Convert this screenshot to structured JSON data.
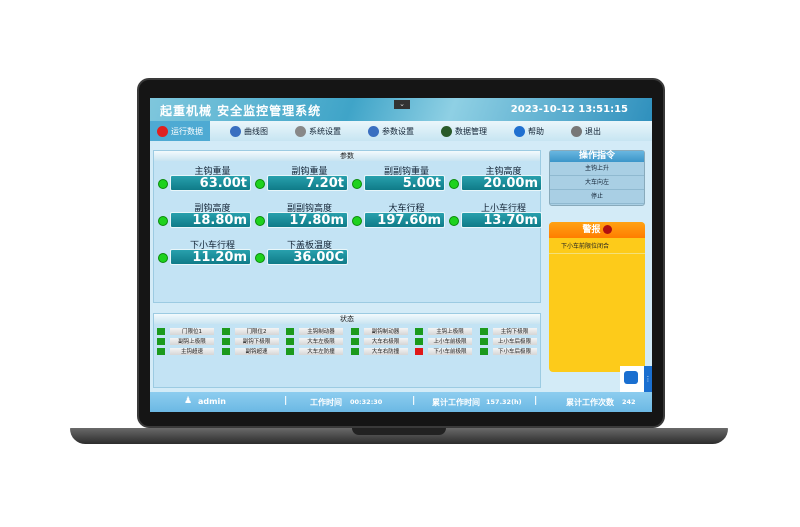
{
  "header": {
    "title": "起重机械 安全监控管理系统",
    "datetime": "2023-10-12 13:51:15",
    "collapse_icon": "chevron-down"
  },
  "nav": [
    {
      "label": "运行数据",
      "icon": "record-icon",
      "active": true
    },
    {
      "label": "曲线图",
      "icon": "chart-icon"
    },
    {
      "label": "系统设置",
      "icon": "gear-icon"
    },
    {
      "label": "参数设置",
      "icon": "monitor-icon"
    },
    {
      "label": "数据管理",
      "icon": "data-icon"
    },
    {
      "label": "帮助",
      "icon": "help-icon"
    },
    {
      "label": "退出",
      "icon": "exit-icon"
    }
  ],
  "params": {
    "title": "参数",
    "items": [
      {
        "label": "主钩重量",
        "value": "63.00t"
      },
      {
        "label": "副钩重量",
        "value": "7.20t"
      },
      {
        "label": "副副钩重量",
        "value": "5.00t"
      },
      {
        "label": "主钩高度",
        "value": "20.00m"
      },
      {
        "label": "副钩高度",
        "value": "18.80m"
      },
      {
        "label": "副副钩高度",
        "value": "17.80m"
      },
      {
        "label": "大车行程",
        "value": "197.60m"
      },
      {
        "label": "上小车行程",
        "value": "13.70m"
      },
      {
        "label": "下小车行程",
        "value": "11.20m"
      },
      {
        "label": "下盖板温度",
        "value": "36.00C"
      }
    ]
  },
  "status": {
    "title": "状态",
    "items": [
      {
        "label": "门限位1",
        "state": "ok"
      },
      {
        "label": "门限位2",
        "state": "ok"
      },
      {
        "label": "主钩制动器",
        "state": "ok"
      },
      {
        "label": "副钩制动器",
        "state": "ok"
      },
      {
        "label": "主钩上极限",
        "state": "ok"
      },
      {
        "label": "主钩下极限",
        "state": "ok"
      },
      {
        "label": "副钩上极限",
        "state": "ok"
      },
      {
        "label": "副钩下极限",
        "state": "ok"
      },
      {
        "label": "大车左极限",
        "state": "ok"
      },
      {
        "label": "大车右极限",
        "state": "ok"
      },
      {
        "label": "上小车前极限",
        "state": "ok"
      },
      {
        "label": "上小车后极限",
        "state": "ok"
      },
      {
        "label": "主钩超速",
        "state": "ok"
      },
      {
        "label": "副钩超速",
        "state": "ok"
      },
      {
        "label": "大车左防撞",
        "state": "ok"
      },
      {
        "label": "大车右防撞",
        "state": "ok"
      },
      {
        "label": "下小车前极限",
        "state": "alarm"
      },
      {
        "label": "下小车后极限",
        "state": "ok"
      }
    ],
    "colors": {
      "ok": "#1c9a1c",
      "alarm": "#e01818"
    }
  },
  "commands": {
    "title": "操作指令",
    "items": [
      "主钩上升",
      "大车向左",
      "停止"
    ]
  },
  "alarm": {
    "title": "警报",
    "items": [
      "下小车前限位闭合"
    ]
  },
  "footer": {
    "user": "admin",
    "work_time_label": "工作时间",
    "work_time": "00:32:30",
    "total_time_label": "累计工作时间",
    "total_time": "157.32(h)",
    "count_label": "累计工作次数",
    "count": "242"
  }
}
